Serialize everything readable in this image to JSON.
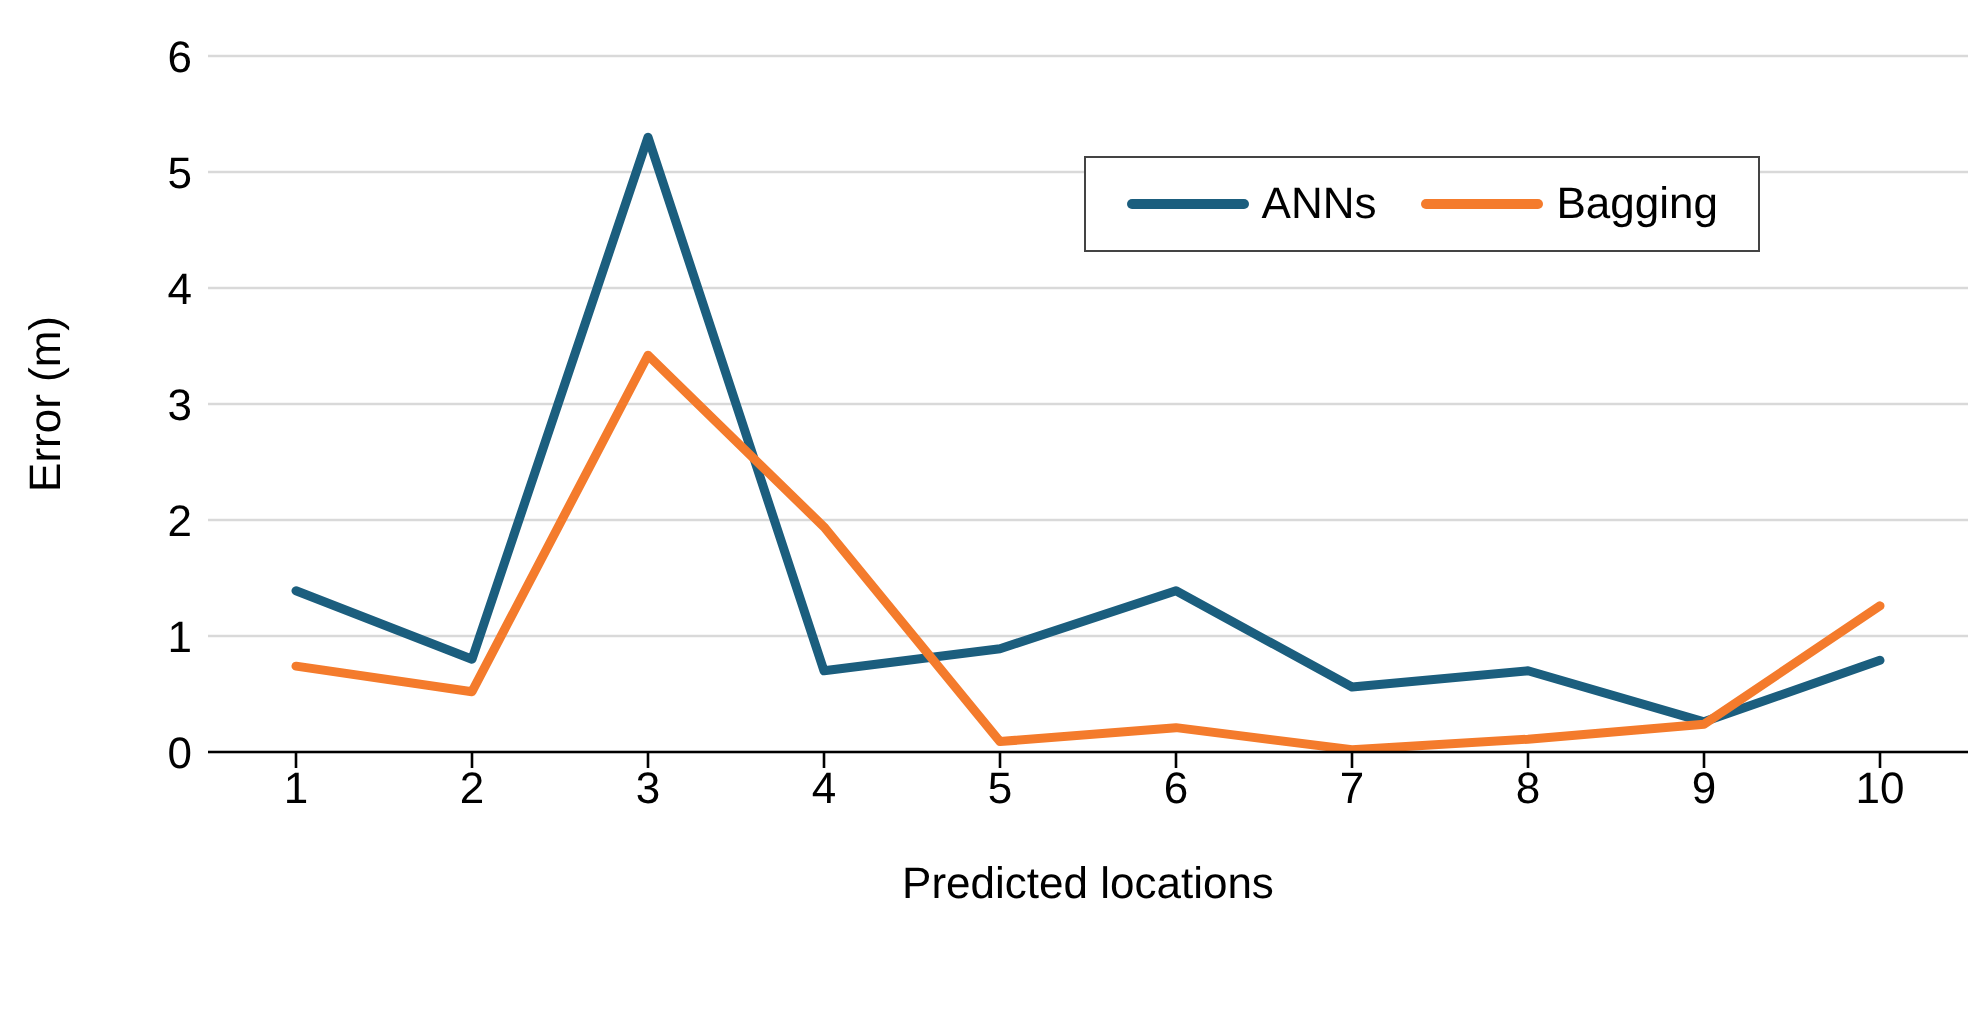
{
  "chart_data": {
    "type": "line",
    "xlabel": "Predicted locations",
    "ylabel": "Error (m)",
    "categories": [
      "1",
      "2",
      "3",
      "4",
      "5",
      "6",
      "7",
      "8",
      "9",
      "10"
    ],
    "series": [
      {
        "name": "ANNs",
        "color": "#1b5e7e",
        "values": [
          1.39,
          0.8,
          5.3,
          0.7,
          0.89,
          1.39,
          0.56,
          0.7,
          0.26,
          0.79
        ]
      },
      {
        "name": "Bagging",
        "color": "#f47b2c",
        "values": [
          0.74,
          0.52,
          3.42,
          1.94,
          0.09,
          0.21,
          0.02,
          0.11,
          0.24,
          1.26
        ]
      }
    ],
    "ylim": [
      0,
      6
    ],
    "yticks": [
      0,
      1,
      2,
      3,
      4,
      5,
      6
    ],
    "grid": "y",
    "legend": "top right",
    "marker": "none",
    "line_style": "solid"
  }
}
